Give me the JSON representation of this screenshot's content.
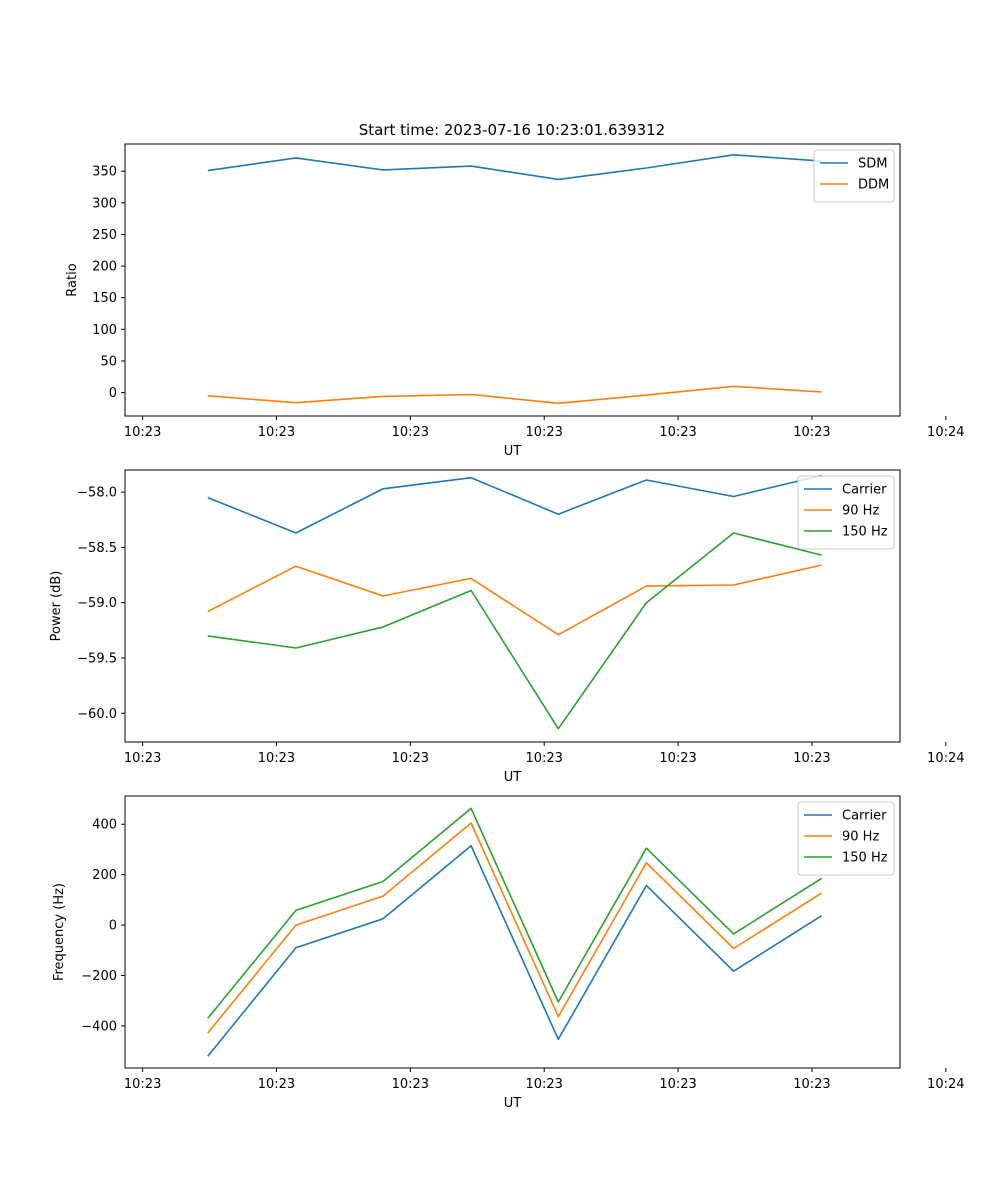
{
  "figure": {
    "title": "Start time: 2023-07-16 10:23:01.639312"
  },
  "chart_data": [
    {
      "type": "line",
      "title": "Start time: 2023-07-16 10:23:01.639312",
      "xlabel": "UT",
      "ylabel": "Ratio",
      "xlim": [
        -0.2,
        8.6
      ],
      "ylim": [
        -37,
        393
      ],
      "xticks": [
        {
          "value": 0,
          "label": "10:23"
        },
        {
          "value": 1.52,
          "label": "10:23"
        },
        {
          "value": 3.04,
          "label": "10:23"
        },
        {
          "value": 4.56,
          "label": "10:23"
        },
        {
          "value": 6.08,
          "label": "10:23"
        },
        {
          "value": 7.6,
          "label": "10:23"
        },
        {
          "value": 9.12,
          "label": "10:24"
        }
      ],
      "yticks": [
        0,
        50,
        100,
        150,
        200,
        250,
        300,
        350
      ],
      "x": [
        0.74,
        1.74,
        2.73,
        3.73,
        4.72,
        5.72,
        6.71,
        7.71
      ],
      "series": [
        {
          "name": "SDM",
          "color": "#1f77b4",
          "values": [
            351,
            371,
            352,
            358,
            337,
            355,
            376,
            366
          ]
        },
        {
          "name": "DDM",
          "color": "#ff7f0e",
          "values": [
            -5,
            -16,
            -6,
            -3,
            -17,
            -4,
            10,
            1
          ]
        }
      ],
      "legend": "top-right"
    },
    {
      "type": "line",
      "title": "",
      "xlabel": "UT",
      "ylabel": "Power (dB)",
      "xlim": [
        -0.2,
        8.6
      ],
      "ylim": [
        -60.26,
        -57.8
      ],
      "xticks": [
        {
          "value": 0,
          "label": "10:23"
        },
        {
          "value": 1.52,
          "label": "10:23"
        },
        {
          "value": 3.04,
          "label": "10:23"
        },
        {
          "value": 4.56,
          "label": "10:23"
        },
        {
          "value": 6.08,
          "label": "10:23"
        },
        {
          "value": 7.6,
          "label": "10:23"
        },
        {
          "value": 9.12,
          "label": "10:24"
        }
      ],
      "yticks": [
        -60.0,
        -59.5,
        -59.0,
        -58.5,
        -58.0
      ],
      "ytick_labels": [
        "−60.0",
        "−59.5",
        "−59.0",
        "−58.5",
        "−58.0"
      ],
      "x": [
        0.74,
        1.74,
        2.73,
        3.73,
        4.72,
        5.72,
        6.71,
        7.71
      ],
      "series": [
        {
          "name": "Carrier",
          "color": "#1f77b4",
          "values": [
            -58.05,
            -58.37,
            -57.97,
            -57.87,
            -58.2,
            -57.89,
            -58.04,
            -57.85
          ]
        },
        {
          "name": "90 Hz",
          "color": "#ff7f0e",
          "values": [
            -59.08,
            -58.67,
            -58.94,
            -58.78,
            -59.29,
            -58.85,
            -58.84,
            -58.66
          ]
        },
        {
          "name": "150 Hz",
          "color": "#2ca02c",
          "values": [
            -59.3,
            -59.41,
            -59.22,
            -58.89,
            -60.14,
            -59.0,
            -58.37,
            -58.57
          ]
        }
      ],
      "legend": "top-right"
    },
    {
      "type": "line",
      "title": "",
      "xlabel": "UT",
      "ylabel": "Frequency (Hz)",
      "xlim": [
        -0.2,
        8.6
      ],
      "ylim": [
        -567,
        512
      ],
      "xticks": [
        {
          "value": 0,
          "label": "10:23"
        },
        {
          "value": 1.52,
          "label": "10:23"
        },
        {
          "value": 3.04,
          "label": "10:23"
        },
        {
          "value": 4.56,
          "label": "10:23"
        },
        {
          "value": 6.08,
          "label": "10:23"
        },
        {
          "value": 7.6,
          "label": "10:23"
        },
        {
          "value": 9.12,
          "label": "10:24"
        }
      ],
      "yticks": [
        -400,
        -200,
        0,
        200,
        400
      ],
      "ytick_labels": [
        "−400",
        "−200",
        "0",
        "200",
        "400"
      ],
      "x": [
        0.74,
        1.74,
        2.73,
        3.73,
        4.72,
        5.72,
        6.71,
        7.71
      ],
      "series": [
        {
          "name": "Carrier",
          "color": "#1f77b4",
          "values": [
            -520,
            -90,
            25,
            315,
            -453,
            157,
            -183,
            37
          ]
        },
        {
          "name": "90 Hz",
          "color": "#ff7f0e",
          "values": [
            -428,
            0,
            115,
            405,
            -363,
            247,
            -93,
            127
          ]
        },
        {
          "name": "150 Hz",
          "color": "#2ca02c",
          "values": [
            -370,
            58,
            173,
            463,
            -305,
            305,
            -35,
            185
          ]
        }
      ],
      "legend": "top-right"
    }
  ]
}
